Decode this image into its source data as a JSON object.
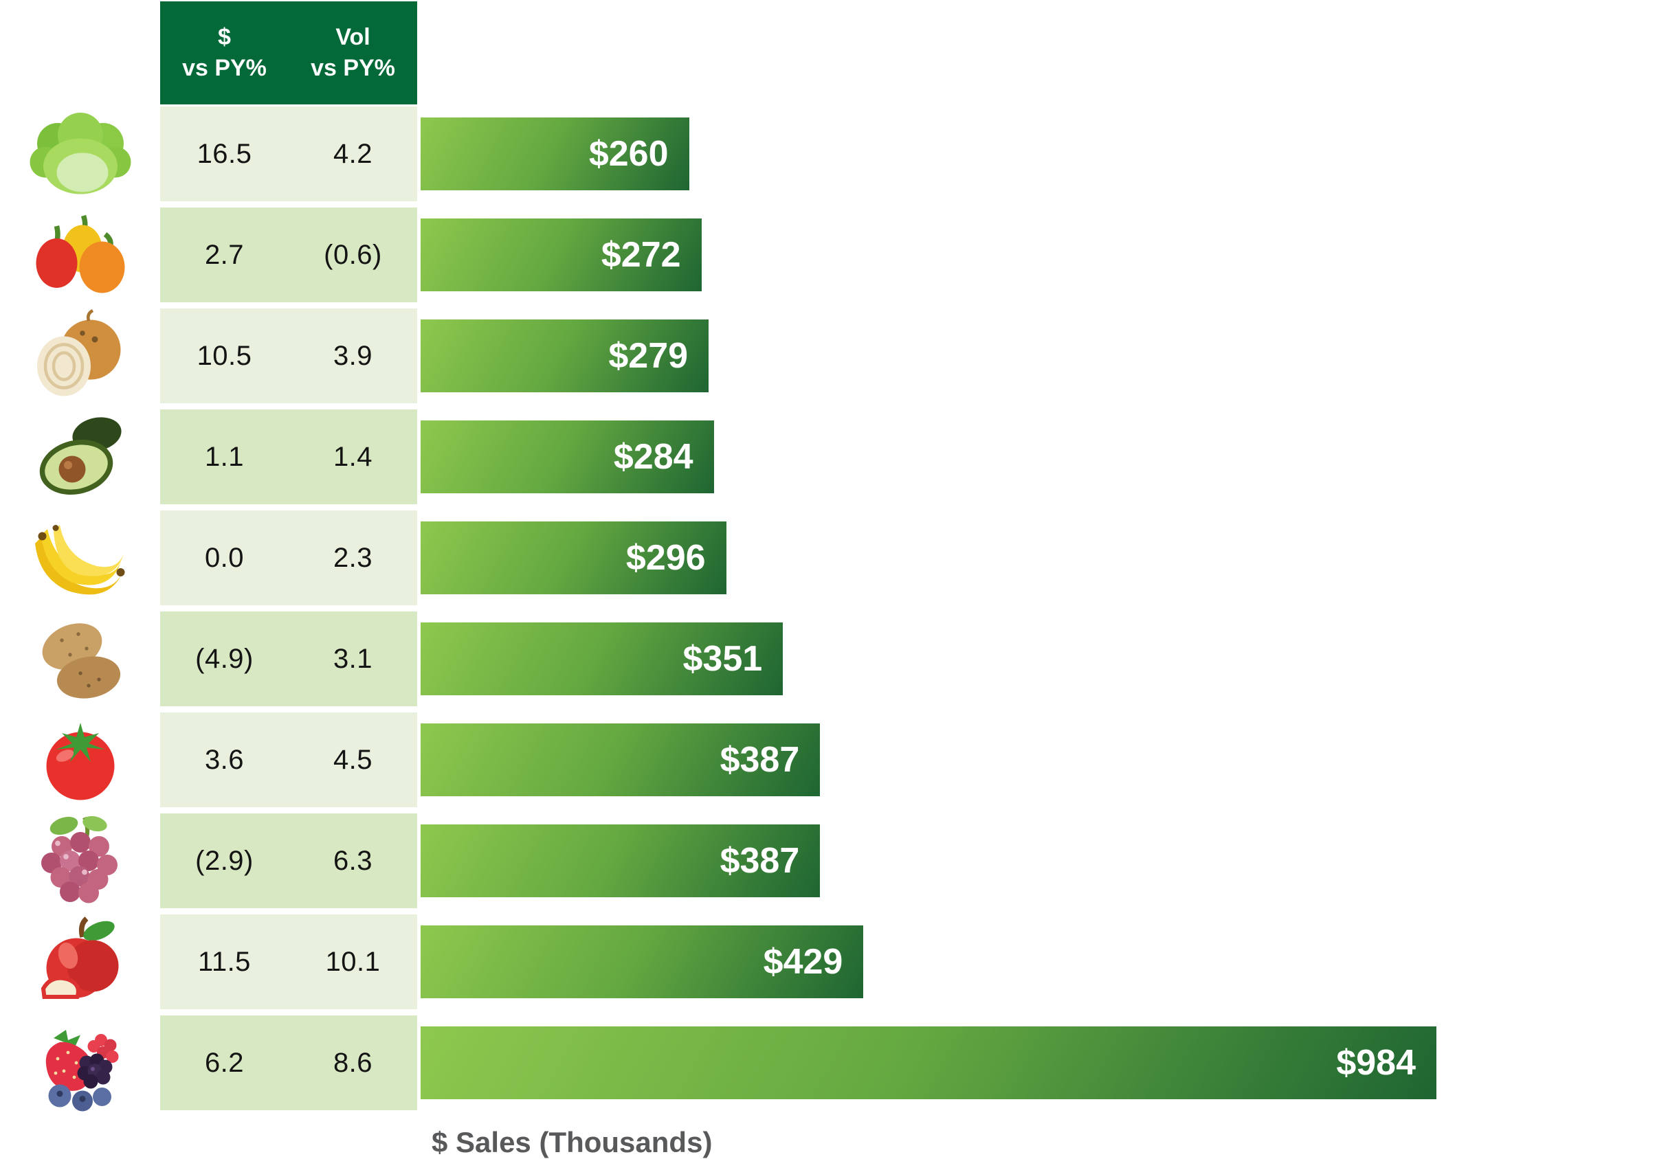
{
  "header": {
    "col1_line1": "$",
    "col1_line2": "vs PY%",
    "col2_line1": "Vol",
    "col2_line2": "vs PY%"
  },
  "footer": {
    "axis_label": "$ Sales (Thousands)"
  },
  "rows": [
    {
      "icon": "lettuce",
      "dollar_vs_py": "16.5",
      "vol_vs_py": "4.2",
      "sales_label": "$260"
    },
    {
      "icon": "bell-peppers",
      "dollar_vs_py": "2.7",
      "vol_vs_py": "(0.6)",
      "sales_label": "$272"
    },
    {
      "icon": "onion",
      "dollar_vs_py": "10.5",
      "vol_vs_py": "3.9",
      "sales_label": "$279"
    },
    {
      "icon": "avocado",
      "dollar_vs_py": "1.1",
      "vol_vs_py": "1.4",
      "sales_label": "$284"
    },
    {
      "icon": "bananas",
      "dollar_vs_py": "0.0",
      "vol_vs_py": "2.3",
      "sales_label": "$296"
    },
    {
      "icon": "potatoes",
      "dollar_vs_py": "(4.9)",
      "vol_vs_py": "3.1",
      "sales_label": "$351"
    },
    {
      "icon": "tomato",
      "dollar_vs_py": "3.6",
      "vol_vs_py": "4.5",
      "sales_label": "$387"
    },
    {
      "icon": "grapes",
      "dollar_vs_py": "(2.9)",
      "vol_vs_py": "6.3",
      "sales_label": "$387"
    },
    {
      "icon": "apple",
      "dollar_vs_py": "11.5",
      "vol_vs_py": "10.1",
      "sales_label": "$429"
    },
    {
      "icon": "berries",
      "dollar_vs_py": "6.2",
      "vol_vs_py": "8.6",
      "sales_label": "$984"
    }
  ],
  "chart_data": {
    "type": "bar",
    "orientation": "horizontal",
    "title": "",
    "xlabel": "$ Sales (Thousands)",
    "ylabel": "",
    "xlim": [
      0,
      984
    ],
    "grid": false,
    "legend": false,
    "categories": [
      "Lettuce",
      "Bell Peppers",
      "Onions",
      "Avocados",
      "Bananas",
      "Potatoes",
      "Tomatoes",
      "Grapes",
      "Apples",
      "Berries"
    ],
    "values": [
      260,
      272,
      279,
      284,
      296,
      351,
      387,
      387,
      429,
      984
    ],
    "bar_labels": [
      "$260",
      "$272",
      "$279",
      "$284",
      "$296",
      "$351",
      "$387",
      "$387",
      "$429",
      "$984"
    ],
    "table_headers": [
      "$ vs PY%",
      "Vol vs PY%"
    ],
    "table_rows": [
      [
        "16.5",
        "4.2"
      ],
      [
        "2.7",
        "(0.6)"
      ],
      [
        "10.5",
        "3.9"
      ],
      [
        "1.1",
        "1.4"
      ],
      [
        "0.0",
        "2.3"
      ],
      [
        "(4.9)",
        "3.1"
      ],
      [
        "3.6",
        "4.5"
      ],
      [
        "(2.9)",
        "6.3"
      ],
      [
        "11.5",
        "10.1"
      ],
      [
        "6.2",
        "8.6"
      ]
    ],
    "colors": {
      "header_bg": "#046938",
      "row_light": "#e9f0dd",
      "row_dark": "#d8e8c3",
      "bar_gradient_start": "#8ec84e",
      "bar_gradient_end": "#1e6532",
      "bar_label_text": "#ffffff",
      "table_text": "#141414",
      "axis_label_text": "#58595b"
    }
  }
}
